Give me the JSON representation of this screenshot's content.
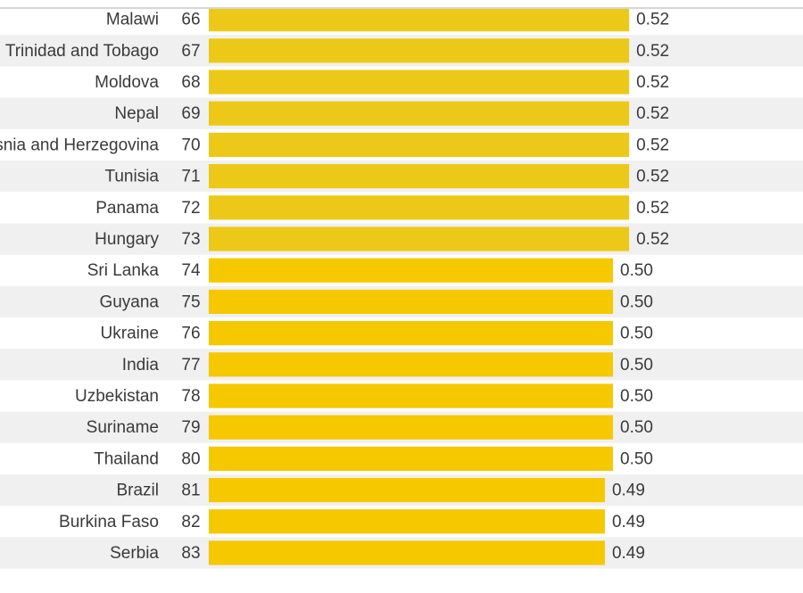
{
  "chart_data": {
    "type": "bar",
    "orientation": "horizontal",
    "categories": [
      "Malawi",
      "Trinidad and Tobago",
      "Moldova",
      "Nepal",
      "Bosnia and Herzegovina",
      "Tunisia",
      "Panama",
      "Hungary",
      "Sri Lanka",
      "Guyana",
      "Ukraine",
      "India",
      "Uzbekistan",
      "Suriname",
      "Thailand",
      "Brazil",
      "Burkina Faso",
      "Serbia"
    ],
    "ranks": [
      66,
      67,
      68,
      69,
      70,
      71,
      72,
      73,
      74,
      75,
      76,
      77,
      78,
      79,
      80,
      81,
      82,
      83
    ],
    "values": [
      0.52,
      0.52,
      0.52,
      0.52,
      0.52,
      0.52,
      0.52,
      0.52,
      0.5,
      0.5,
      0.5,
      0.5,
      0.5,
      0.5,
      0.5,
      0.49,
      0.49,
      0.49
    ],
    "value_labels": [
      "0.52",
      "0.52",
      "0.52",
      "0.52",
      "0.52",
      "0.52",
      "0.52",
      "0.52",
      "0.50",
      "0.50",
      "0.50",
      "0.50",
      "0.50",
      "0.50",
      "0.50",
      "0.49",
      "0.49",
      "0.49"
    ],
    "title": "",
    "xlabel": "",
    "ylabel": "",
    "grid": false,
    "legend": "none"
  },
  "colors": {
    "bar_high": "#ecc918",
    "bar_low": "#f5c800",
    "row_stripe": "#f0f0f0",
    "text": "#3a3a3a"
  }
}
